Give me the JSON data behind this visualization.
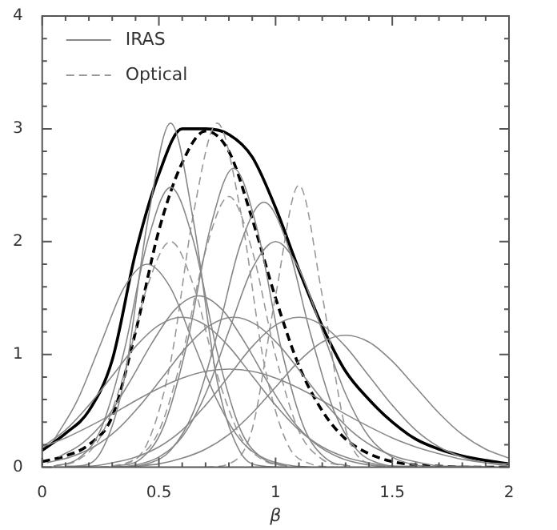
{
  "chart_data": {
    "type": "line",
    "xlabel": "β",
    "xlim": [
      0,
      2
    ],
    "ylim": [
      0,
      4
    ],
    "xticks": [
      0,
      {
        "value": 0.1,
        "label": null
      },
      {
        "value": 0.2,
        "label": null
      },
      {
        "value": 0.3,
        "label": null
      },
      {
        "value": 0.4,
        "label": null
      },
      0.5,
      {
        "value": 0.6,
        "label": null
      },
      {
        "value": 0.7,
        "label": null
      },
      {
        "value": 0.8,
        "label": null
      },
      {
        "value": 0.9,
        "label": null
      },
      1,
      {
        "value": 1.1,
        "label": null
      },
      {
        "value": 1.2,
        "label": null
      },
      {
        "value": 1.3,
        "label": null
      },
      {
        "value": 1.4,
        "label": null
      },
      1.5,
      {
        "value": 1.6,
        "label": null
      },
      {
        "value": 1.7,
        "label": null
      },
      {
        "value": 1.8,
        "label": null
      },
      {
        "value": 1.9,
        "label": null
      },
      2
    ],
    "yticks": [
      0,
      {
        "value": 0.2,
        "label": null
      },
      {
        "value": 0.4,
        "label": null
      },
      {
        "value": 0.6,
        "label": null
      },
      {
        "value": 0.8,
        "label": null
      },
      1,
      {
        "value": 1.2,
        "label": null
      },
      {
        "value": 1.4,
        "label": null
      },
      {
        "value": 1.6,
        "label": null
      },
      {
        "value": 1.8,
        "label": null
      },
      2,
      {
        "value": 2.2,
        "label": null
      },
      {
        "value": 2.4,
        "label": null
      },
      {
        "value": 2.6,
        "label": null
      },
      {
        "value": 2.8,
        "label": null
      },
      3,
      {
        "value": 3.2,
        "label": null
      },
      {
        "value": 3.4,
        "label": null
      },
      {
        "value": 3.6,
        "label": null
      },
      {
        "value": 3.8,
        "label": null
      },
      4
    ],
    "grid": false,
    "legend": "top left",
    "marker": "none",
    "series": [
      {
        "name": "IRAS",
        "color": "#888888",
        "x": [
          0.05,
          0.15,
          0.25,
          0.35,
          0.45,
          0.55,
          0.65,
          0.75,
          0.85,
          0.95,
          1.05,
          1.15
        ],
        "values": [
          0.24,
          0.59,
          1.09,
          1.59,
          1.8,
          1.59,
          1.09,
          0.59,
          0.24,
          0.08,
          0.02,
          0.0
        ]
      },
      {
        "color": "#888888",
        "x": [
          0,
          0.1,
          0.2,
          0.3,
          0.4,
          0.5,
          0.6,
          0.7,
          0.8,
          0.9,
          1.0,
          1.1,
          1.2,
          1.3,
          1.4,
          1.5,
          1.6
        ],
        "values": [
          0.18,
          0.33,
          0.55,
          0.81,
          1.07,
          1.26,
          1.33,
          1.26,
          1.07,
          0.81,
          0.55,
          0.33,
          0.18,
          0.09,
          0.04,
          0.01,
          0.01
        ]
      },
      {
        "color": "#888888",
        "x": [
          0.07,
          0.17,
          0.27,
          0.37,
          0.47,
          0.57,
          0.67,
          0.77,
          0.87,
          0.97,
          1.07,
          1.17,
          1.27,
          1.37,
          1.47
        ],
        "values": [
          0.09,
          0.21,
          0.42,
          0.74,
          1.1,
          1.4,
          1.52,
          1.4,
          1.1,
          0.74,
          0.42,
          0.21,
          0.09,
          0.03,
          0.01
        ]
      },
      {
        "color": "#888888",
        "x": [
          0,
          0.1,
          0.2,
          0.3,
          0.4,
          0.5,
          0.6,
          0.7,
          0.8,
          0.9,
          1.0,
          1.1,
          1.2,
          1.3,
          1.4,
          1.5,
          1.6,
          1.7,
          1.8,
          1.9,
          2.0
        ],
        "values": [
          0.18,
          0.26,
          0.36,
          0.47,
          0.59,
          0.7,
          0.79,
          0.85,
          0.87,
          0.85,
          0.79,
          0.7,
          0.59,
          0.47,
          0.36,
          0.26,
          0.18,
          0.12,
          0.07,
          0.04,
          0.03
        ]
      },
      {
        "color": "#888888",
        "x": [
          0.02,
          0.12,
          0.22,
          0.32,
          0.42,
          0.52,
          0.62,
          0.72,
          0.82,
          0.92,
          1.02,
          1.12,
          1.22,
          1.32,
          1.42,
          1.52,
          1.62,
          1.72,
          1.82,
          1.92
        ],
        "values": [
          0.04,
          0.09,
          0.18,
          0.33,
          0.55,
          0.81,
          1.07,
          1.26,
          1.33,
          1.26,
          1.07,
          0.81,
          0.55,
          0.33,
          0.18,
          0.09,
          0.04,
          0.01,
          0.01,
          0.0
        ]
      },
      {
        "color": "#888888",
        "x": [
          0.1,
          0.2,
          0.3,
          0.4,
          0.5,
          0.6,
          0.7,
          0.8,
          0.9,
          1.0,
          1.1,
          1.2,
          1.3,
          1.4,
          1.5,
          1.6,
          1.7,
          1.8,
          1.9,
          2.0
        ],
        "values": [
          0.01,
          0.01,
          0.04,
          0.09,
          0.18,
          0.33,
          0.55,
          0.81,
          1.07,
          1.26,
          1.33,
          1.26,
          1.07,
          0.81,
          0.55,
          0.33,
          0.18,
          0.09,
          0.04,
          0.01
        ]
      },
      {
        "color": "#888888",
        "x": [
          0.2,
          0.3,
          0.4,
          0.5,
          0.6,
          0.7,
          0.8,
          0.9,
          1.0,
          1.1,
          1.2,
          1.3,
          1.4,
          1.5,
          1.6,
          1.7,
          1.8,
          1.9,
          2.0
        ],
        "values": [
          0.0,
          0.0,
          0.01,
          0.03,
          0.08,
          0.16,
          0.29,
          0.48,
          0.71,
          0.94,
          1.11,
          1.17,
          1.11,
          0.94,
          0.71,
          0.48,
          0.29,
          0.16,
          0.08
        ]
      },
      {
        "color": "#888888",
        "x": [
          0.3,
          0.4,
          0.5,
          0.6,
          0.7,
          0.8,
          0.9,
          1.0,
          1.1,
          1.2,
          1.3,
          1.4,
          1.5,
          1.6,
          1.7
        ],
        "values": [
          0.0,
          0.02,
          0.09,
          0.27,
          0.65,
          1.21,
          1.76,
          2.0,
          1.76,
          1.21,
          0.65,
          0.27,
          0.09,
          0.02,
          0.0
        ]
      },
      {
        "color": "#888888",
        "x": [
          0.35,
          0.45,
          0.55,
          0.65,
          0.75,
          0.85,
          0.95,
          1.05,
          1.15,
          1.25,
          1.35,
          1.45,
          1.55
        ],
        "values": [
          0.0,
          0.03,
          0.15,
          0.5,
          1.18,
          1.98,
          2.35,
          1.98,
          1.18,
          0.5,
          0.15,
          0.03,
          0.0
        ]
      },
      {
        "color": "#888888",
        "x": [
          0.32,
          0.42,
          0.52,
          0.62,
          0.72,
          0.82,
          0.92,
          1.02,
          1.12,
          1.22,
          1.32
        ],
        "values": [
          0.01,
          0.07,
          0.36,
          1.09,
          2.12,
          2.65,
          2.12,
          1.09,
          0.36,
          0.07,
          0.01
        ]
      },
      {
        "color": "#888888",
        "x": [
          0.05,
          0.15,
          0.25,
          0.35,
          0.45,
          0.55,
          0.65,
          0.75,
          0.85,
          0.95,
          1.05
        ],
        "values": [
          0.0,
          0.01,
          0.13,
          0.76,
          2.16,
          3.05,
          2.16,
          0.76,
          0.13,
          0.01,
          0.0
        ]
      },
      {
        "color": "#888888",
        "x": [
          0.05,
          0.15,
          0.25,
          0.35,
          0.45,
          0.55,
          0.65,
          0.75,
          0.85,
          0.95,
          1.05
        ],
        "values": [
          0.01,
          0.07,
          0.33,
          1.02,
          1.99,
          2.48,
          1.99,
          1.02,
          0.33,
          0.07,
          0.01
        ]
      },
      {
        "name": "Optical",
        "color": "#999999",
        "line_style": "dashed",
        "x": [
          0.7,
          0.8,
          0.9,
          1.0,
          1.1,
          1.2,
          1.3,
          1.4,
          1.5
        ],
        "values": [
          0.0,
          0.03,
          0.34,
          1.52,
          2.5,
          1.52,
          0.34,
          0.03,
          0.0
        ]
      },
      {
        "color": "#999999",
        "line_style": "dashed",
        "x": [
          0.25,
          0.35,
          0.45,
          0.55,
          0.65,
          0.75,
          0.85,
          0.95,
          1.05,
          1.15,
          1.25
        ],
        "values": [
          0.0,
          0.03,
          0.21,
          0.93,
          2.27,
          3.05,
          2.27,
          0.93,
          0.21,
          0.03,
          0.0
        ]
      },
      {
        "color": "#999999",
        "line_style": "dashed",
        "x": [
          0.05,
          0.15,
          0.25,
          0.35,
          0.45,
          0.55,
          0.65,
          0.75,
          0.85,
          0.95,
          1.05
        ],
        "values": [
          0.01,
          0.06,
          0.27,
          0.82,
          1.6,
          2.0,
          1.6,
          0.82,
          0.27,
          0.06,
          0.01
        ]
      },
      {
        "color": "#999999",
        "line_style": "dashed",
        "x": [
          0.3,
          0.4,
          0.5,
          0.6,
          0.7,
          0.8,
          0.9,
          1.0,
          1.1,
          1.2,
          1.3
        ],
        "values": [
          0.01,
          0.07,
          0.32,
          0.99,
          1.92,
          2.4,
          1.92,
          0.99,
          0.32,
          0.07,
          0.01
        ]
      },
      {
        "color": "#000000",
        "line_style": "dashed",
        "x": [
          0,
          0.1,
          0.2,
          0.3,
          0.4,
          0.5,
          0.6,
          0.7,
          0.8,
          0.9,
          1.0,
          1.1,
          1.2,
          1.3,
          1.4,
          1.5,
          1.6,
          1.7,
          1.8,
          1.9,
          2.0
        ],
        "values": [
          0.05,
          0.1,
          0.2,
          0.45,
          1.2,
          2.1,
          2.7,
          2.98,
          2.8,
          2.2,
          1.5,
          0.9,
          0.5,
          0.25,
          0.12,
          0.05,
          0.02,
          0.01,
          0.0,
          0.0,
          0.0
        ]
      },
      {
        "color": "#000000",
        "x": [
          0,
          0.1,
          0.2,
          0.3,
          0.4,
          0.5,
          0.6,
          0.7,
          0.8,
          0.9,
          1.0,
          1.1,
          1.2,
          1.3,
          1.4,
          1.5,
          1.6,
          1.7,
          1.8,
          1.9,
          2.0
        ],
        "values": [
          0.15,
          0.3,
          0.5,
          0.95,
          1.9,
          2.6,
          3.0,
          3.0,
          2.95,
          2.75,
          2.3,
          1.75,
          1.25,
          0.85,
          0.6,
          0.4,
          0.25,
          0.16,
          0.1,
          0.06,
          0.03
        ]
      }
    ]
  }
}
